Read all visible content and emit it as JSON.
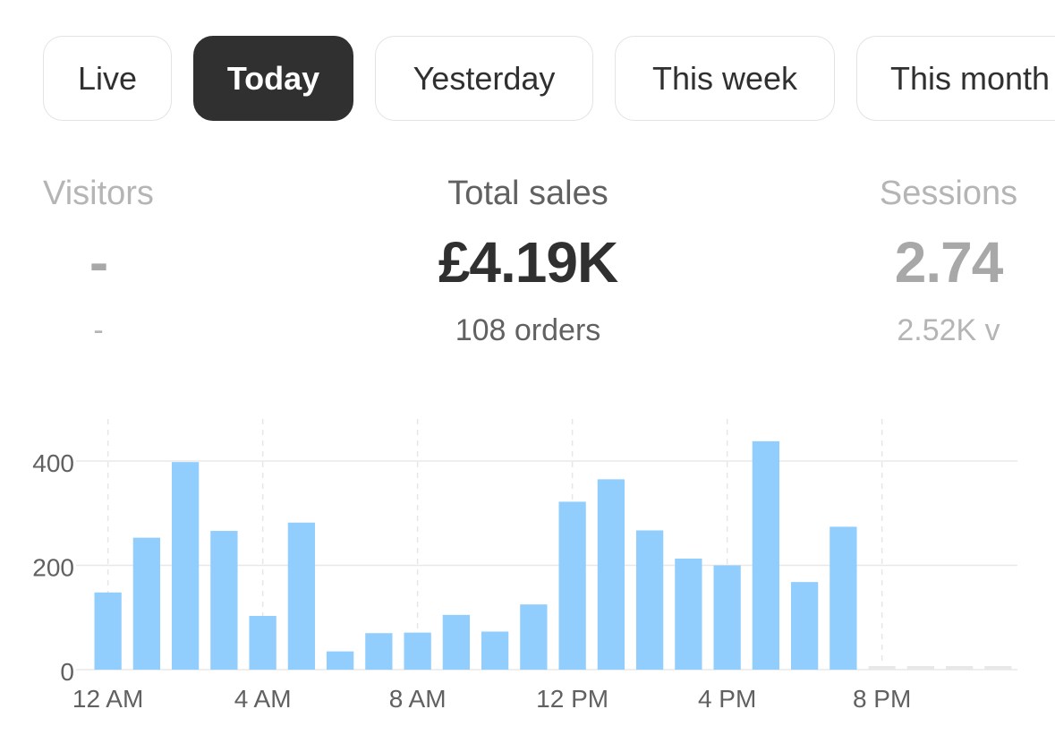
{
  "filters": {
    "items": [
      {
        "label": "Live",
        "active": false
      },
      {
        "label": "Today",
        "active": true
      },
      {
        "label": "Yesterday",
        "active": false
      },
      {
        "label": "This week",
        "active": false
      },
      {
        "label": "This month",
        "active": false
      }
    ]
  },
  "metrics": {
    "visitors": {
      "label": "Visitors",
      "value": "-",
      "sub": "-"
    },
    "total_sales": {
      "label": "Total sales",
      "value": "£4.19K",
      "sub": "108 orders"
    },
    "sessions": {
      "label": "Sessions",
      "value": "2.74",
      "sub": "2.52K v"
    }
  },
  "chart_data": {
    "type": "bar",
    "categories": [
      "12 AM",
      "1 AM",
      "2 AM",
      "3 AM",
      "4 AM",
      "5 AM",
      "6 AM",
      "7 AM",
      "8 AM",
      "9 AM",
      "10 AM",
      "11 AM",
      "12 PM",
      "1 PM",
      "2 PM",
      "3 PM",
      "4 PM",
      "5 PM",
      "6 PM",
      "7 PM",
      "8 PM",
      "9 PM",
      "10 PM",
      "11 PM"
    ],
    "values": [
      148,
      253,
      398,
      266,
      103,
      282,
      35,
      70,
      71,
      105,
      73,
      125,
      322,
      365,
      267,
      213,
      200,
      438,
      168,
      274,
      null,
      null,
      null,
      null
    ],
    "x_tick_labels": [
      "12 AM",
      "4 AM",
      "8 AM",
      "12 PM",
      "4 PM",
      "8 PM"
    ],
    "y_tick_labels": [
      "0",
      "200",
      "400"
    ],
    "ylim": [
      0,
      480
    ],
    "title": "",
    "xlabel": "",
    "ylabel": "",
    "grid": true,
    "colors": {
      "bar": "#91cdfd",
      "future_bar": "#e8e8e8",
      "grid": "#e8e8e8",
      "axis_text": "#616161"
    }
  }
}
